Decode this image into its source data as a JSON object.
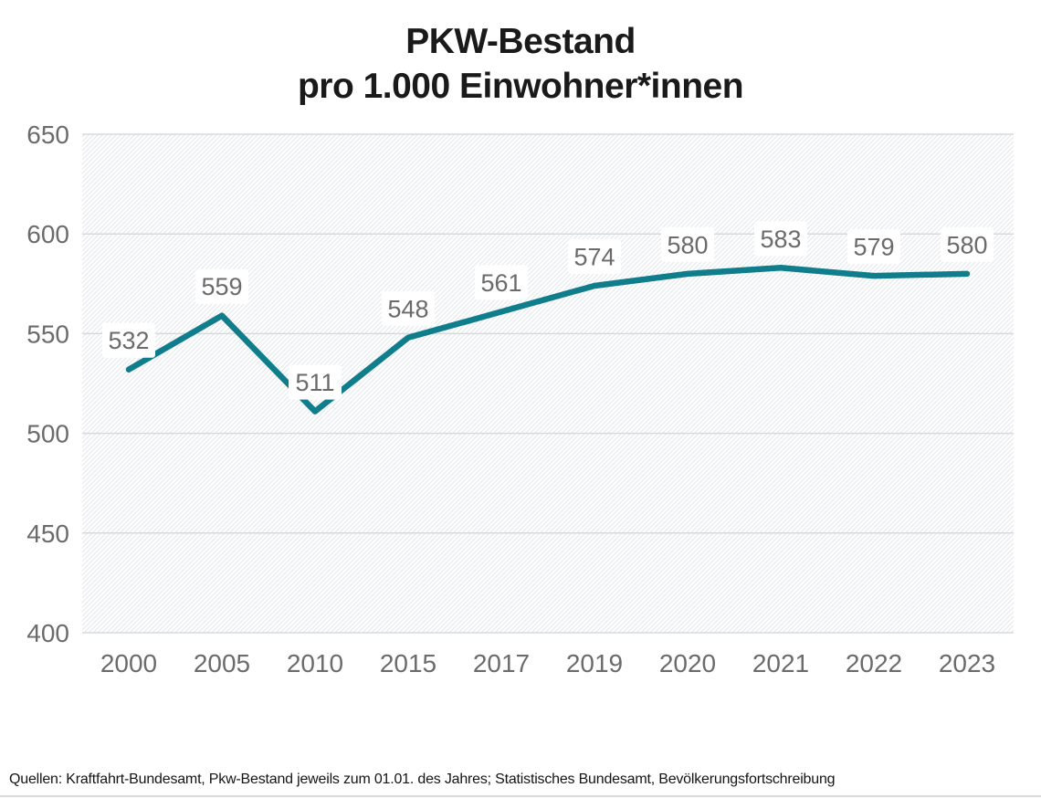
{
  "title": {
    "line1": "PKW-Bestand",
    "line2": "pro 1.000 Einwohner*innen"
  },
  "source_note": "Quellen: Kraftfahrt-Bundesamt, Pkw-Bestand jeweils zum 01.01. des Jahres; Statistisches Bundesamt, Bevölkerungsfortschreibung",
  "chart_data": {
    "type": "line",
    "title": "PKW-Bestand pro 1.000 Einwohner*innen",
    "categories": [
      "2000",
      "2005",
      "2010",
      "2015",
      "2017",
      "2019",
      "2020",
      "2021",
      "2022",
      "2023"
    ],
    "values": [
      532,
      559,
      511,
      548,
      561,
      574,
      580,
      583,
      579,
      580
    ],
    "xlabel": "",
    "ylabel": "",
    "ylim": [
      400,
      650
    ],
    "yticks": [
      650,
      600,
      550,
      500,
      450,
      400
    ],
    "grid": true,
    "legend": false,
    "data_labels": true,
    "plot_background": "hatched-diagonal",
    "colors": {
      "line": "#0f7d8b",
      "grid": "#d7dadc",
      "hatch": "#e6eaee",
      "tick_text": "#6b6b6b",
      "data_label_text": "#6b6b6b",
      "data_label_box": "#ffffff",
      "title_text": "#1a1a1a",
      "background": "#ffffff",
      "divider": "#d9d9d9"
    }
  }
}
